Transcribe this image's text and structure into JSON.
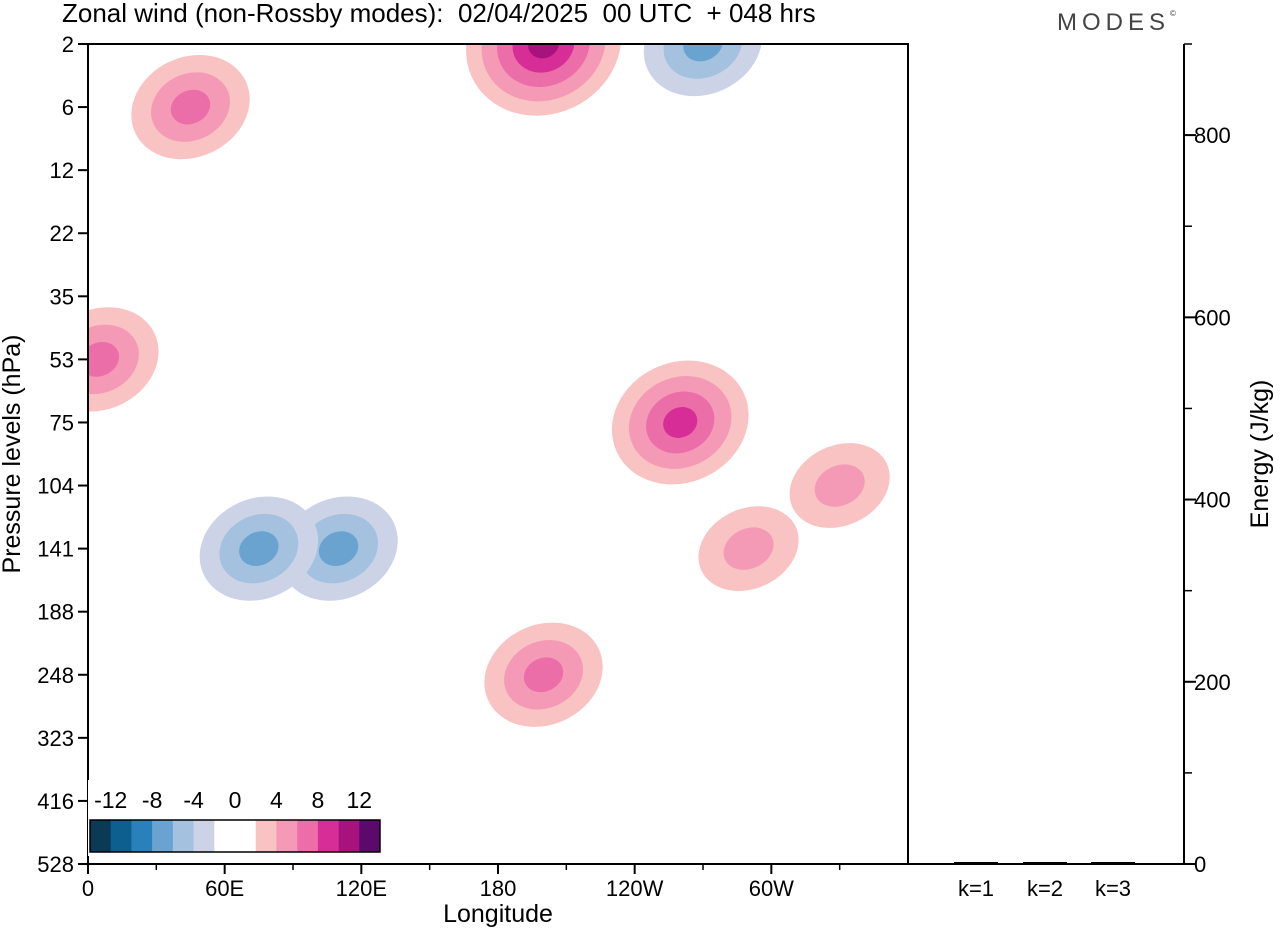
{
  "header": {
    "title": "Zonal wind (non-Rossby modes):  02/04/2025  00 UTC  + 048 hrs",
    "logo": "MODES",
    "logo_mark": "©"
  },
  "chart_data": [
    {
      "type": "heatmap",
      "title": "Zonal wind (non-Rossby modes):  02/04/2025  00 UTC  + 048 hrs",
      "xlabel": "Longitude",
      "ylabel": "Pressure levels (hPa)",
      "x_ticks": [
        "0",
        "60E",
        "120E",
        "180",
        "120W",
        "60W"
      ],
      "y_ticks": [
        "2",
        "6",
        "12",
        "22",
        "35",
        "53",
        "75",
        "104",
        "141",
        "188",
        "248",
        "323",
        "416",
        "528"
      ],
      "colorbar": {
        "labels": [
          "-12",
          "-8",
          "-4",
          "0",
          "4",
          "8",
          "12"
        ],
        "colors": [
          "#0b3a57",
          "#0d5f8f",
          "#2a80bb",
          "#6aa3cf",
          "#a4c2e0",
          "#cdd3e6",
          "#ffffff",
          "#ffffff",
          "#f9c3c3",
          "#f59ab6",
          "#ec6ea8",
          "#d62e96",
          "#a8127d",
          "#5b0a6b"
        ]
      },
      "features": [
        {
          "sign": "positive",
          "lon": 45,
          "level": "6",
          "peak": 8
        },
        {
          "sign": "positive",
          "lon": 200,
          "level": "2",
          "peak": 12
        },
        {
          "sign": "negative",
          "lon": 270,
          "level": "2",
          "peak": -8
        },
        {
          "sign": "negative",
          "lon": 110,
          "level": "141",
          "peak": -8
        },
        {
          "sign": "negative",
          "lon": 75,
          "level": "141",
          "peak": -8
        },
        {
          "sign": "positive",
          "lon": 200,
          "level": "248",
          "peak": 8
        },
        {
          "sign": "positive",
          "lon": 260,
          "level": "75",
          "peak": 10
        },
        {
          "sign": "positive",
          "lon": 5,
          "level": "53",
          "peak": 8
        },
        {
          "sign": "positive",
          "lon": 290,
          "level": "141",
          "peak": 6
        },
        {
          "sign": "positive",
          "lon": 330,
          "level": "104",
          "peak": 6
        }
      ]
    },
    {
      "type": "bar",
      "ylabel": "Energy (J/kg)",
      "categories": [
        "k=1",
        "k=2",
        "k=3"
      ],
      "values": [
        2,
        1,
        1
      ],
      "ylim": [
        0,
        900
      ],
      "y_ticks": [
        "0",
        "200",
        "400",
        "600",
        "800"
      ]
    }
  ]
}
